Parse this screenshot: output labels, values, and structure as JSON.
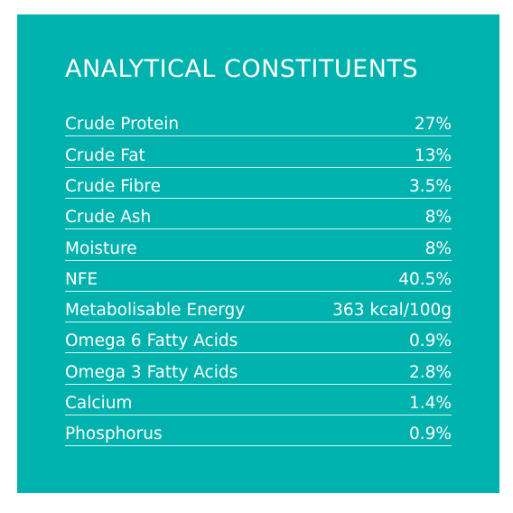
{
  "title": "ANALYTICAL CONSTITUENTS",
  "colors": {
    "panel_background": "#00b2ae",
    "text": "#ffffff",
    "page_background": "#ffffff"
  },
  "rows": [
    {
      "label": "Crude Protein",
      "value": "27%"
    },
    {
      "label": "Crude Fat",
      "value": "13%"
    },
    {
      "label": "Crude Fibre",
      "value": "3.5%"
    },
    {
      "label": "Crude Ash",
      "value": "8%"
    },
    {
      "label": "Moisture",
      "value": "8%"
    },
    {
      "label": "NFE",
      "value": "40.5%"
    },
    {
      "label": "Metabolisable Energy",
      "value": "363 kcal/100g"
    },
    {
      "label": "Omega 6 Fatty Acids",
      "value": "0.9%"
    },
    {
      "label": "Omega 3 Fatty Acids",
      "value": "2.8%"
    },
    {
      "label": "Calcium",
      "value": "1.4%"
    },
    {
      "label": "Phosphorus",
      "value": "0.9%"
    }
  ]
}
